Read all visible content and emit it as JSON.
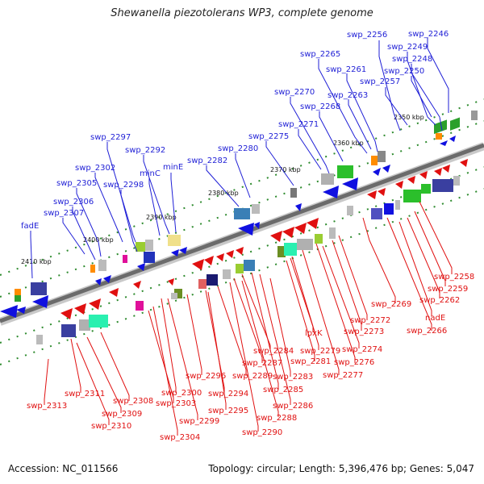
{
  "header": {
    "title": "Shewanella piezotolerans WP3, complete genome"
  },
  "footer": {
    "accession": "Accession: NC_011566",
    "summary": "Topology: circular; Length: 5,396,476 bp; Genes: 5,047"
  },
  "colors": {
    "top_strand_label": "#1f1fd6",
    "bottom_strand_label": "#e01010",
    "axis": "#6b6b6b",
    "tick": "#2e8b2e"
  },
  "axis_ticks": [
    "2350 kbp",
    "2360 kbp",
    "2370 kbp",
    "2380 kbp",
    "2390 kbp",
    "2400 kbp",
    "2410 kbp"
  ],
  "labels_top": [
    "swp_2256",
    "swp_2246",
    "swp_2249",
    "swp_2265",
    "swp_2248",
    "swp_2261",
    "swp_2250",
    "swp_2257",
    "swp_2263",
    "swp_2270",
    "swp_2268",
    "swp_2271",
    "swp_2297",
    "swp_2275",
    "swp_2292",
    "swp_2280",
    "swp_2282",
    "minE",
    "swp_2302",
    "minC",
    "swp_2305",
    "swp_2298",
    "swp_2306",
    "swp_2307",
    "fadE"
  ],
  "labels_bottom": [
    "swp_2258",
    "swp_2259",
    "swp_2262",
    "swp_2269",
    "nadE",
    "swp_2266",
    "swp_2272",
    "lpxK",
    "swp_2273",
    "swp_2274",
    "swp_2284",
    "swp_2279",
    "swp_2281",
    "swp_2276",
    "swp_2287",
    "swp_2296",
    "swp_2283",
    "swp_2277",
    "swp_2289",
    "swp_2285",
    "swp_2311",
    "swp_2300",
    "swp_2294",
    "swp_2308",
    "swp_2303",
    "swp_2286",
    "swp_2313",
    "swp_2295",
    "swp_2309",
    "swp_2288",
    "swp_2299",
    "swp_2310",
    "swp_2290",
    "swp_2304"
  ]
}
